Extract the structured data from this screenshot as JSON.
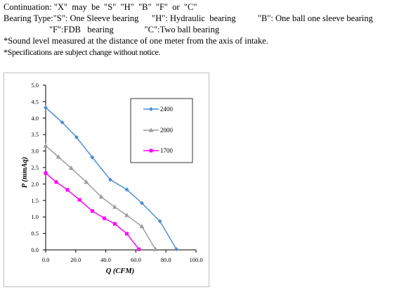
{
  "notes": {
    "continuation": "Continuation: \"X\"  may  be  \"S\"  \"H\"  \"B\"  \"F\"  or  \"C\"",
    "bearing_type": "Bearing Type:\"S\": One Sleeve bearing      \"H\": Hydraulic  bearing          \"B\": One ball one sleeve bearing",
    "bearing_type_2": "\"F\":FDB   bearing              \"C\":Two ball bearing",
    "sound_level": "*Sound level measured at the distance of one meter from the axis of intake.",
    "specifications": "*Specifications are subject change without notice."
  },
  "colors": {
    "series_2400": "#4f8fd0",
    "series_2000": "#9c9c9c",
    "series_1700": "#ff00ff",
    "frame": "#bfbfbf",
    "axis": "#000000"
  },
  "chart_data": {
    "type": "line",
    "xlabel": "Q (CFM)",
    "ylabel": "P (mmAq)",
    "xlim": [
      0,
      100
    ],
    "ylim": [
      0,
      5
    ],
    "x_ticks": [
      "0.0",
      "20.0",
      "40.0",
      "60.0",
      "80.0",
      "100.0"
    ],
    "y_ticks": [
      "0.0",
      "0.5",
      "1.0",
      "1.5",
      "2.0",
      "2.5",
      "3.0",
      "3.5",
      "4.0",
      "4.5",
      "5.0"
    ],
    "grid": false,
    "legend_position": "top-right",
    "series": [
      {
        "name": "2400",
        "marker": "diamond",
        "points": [
          [
            0,
            4.32
          ],
          [
            11,
            3.87
          ],
          [
            20.5,
            3.42
          ],
          [
            31,
            2.81
          ],
          [
            43,
            2.13
          ],
          [
            54,
            1.83
          ],
          [
            64,
            1.42
          ],
          [
            76,
            0.87
          ],
          [
            87,
            0.02
          ]
        ]
      },
      {
        "name": "2000",
        "marker": "triangle",
        "points": [
          [
            0,
            3.16
          ],
          [
            8.5,
            2.82
          ],
          [
            17,
            2.48
          ],
          [
            27,
            2.06
          ],
          [
            37,
            1.61
          ],
          [
            46,
            1.3
          ],
          [
            54,
            1.05
          ],
          [
            64,
            0.71
          ],
          [
            73,
            0.02
          ]
        ]
      },
      {
        "name": "1700",
        "marker": "square",
        "points": [
          [
            0,
            2.33
          ],
          [
            7,
            2.06
          ],
          [
            14.5,
            1.82
          ],
          [
            22.5,
            1.52
          ],
          [
            31,
            1.18
          ],
          [
            39,
            0.96
          ],
          [
            46,
            0.79
          ],
          [
            54,
            0.49
          ],
          [
            62,
            0.02
          ]
        ]
      }
    ]
  }
}
